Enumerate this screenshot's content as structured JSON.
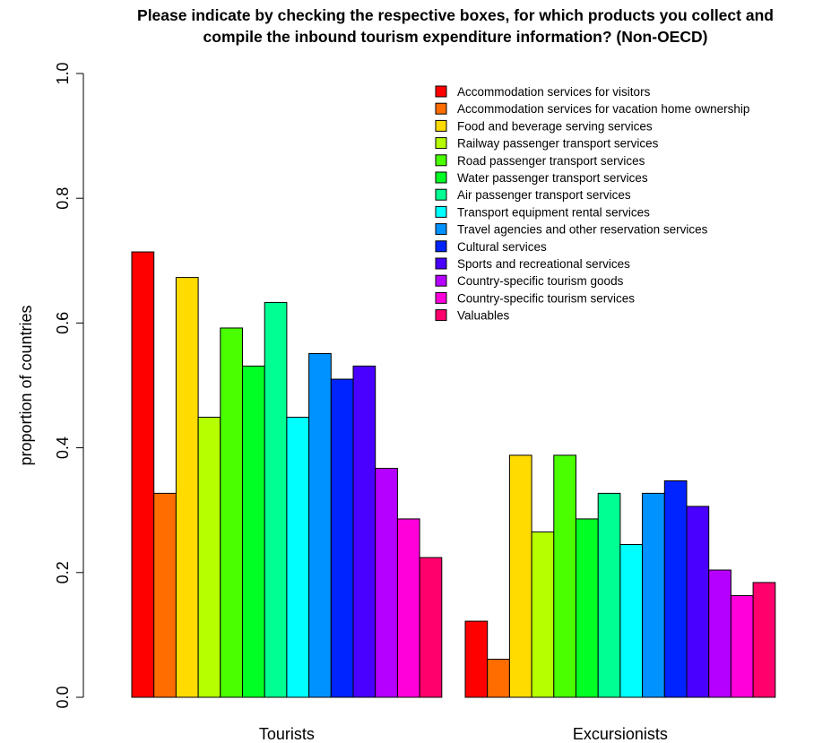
{
  "chart_data": {
    "type": "bar",
    "title": "Please indicate by checking the respective boxes, for which products you collect and compile the inbound tourism expenditure information? (Non-OECD)",
    "title_lines": [
      "Please indicate by checking the respective boxes, for which products you collect and",
      "compile the inbound tourism expenditure information? (Non-OECD)"
    ],
    "xlabel": "",
    "ylabel": "proportion of countries",
    "ylim": [
      0,
      1
    ],
    "yticks": [
      "0.0",
      "0.2",
      "0.4",
      "0.6",
      "0.8",
      "1.0"
    ],
    "categories": [
      "Tourists",
      "Excursionists"
    ],
    "legend_position": "top-right",
    "grid": false,
    "series": [
      {
        "name": "Accommodation services for visitors",
        "color": "#FF0000",
        "values": [
          0.714,
          0.122
        ]
      },
      {
        "name": "Accommodation services for vacation home ownership",
        "color": "#FF6D00",
        "values": [
          0.327,
          0.061
        ]
      },
      {
        "name": "Food and beverage serving services",
        "color": "#FFDB00",
        "values": [
          0.673,
          0.388
        ]
      },
      {
        "name": "Railway passenger transport services",
        "color": "#B6FF00",
        "values": [
          0.449,
          0.265
        ]
      },
      {
        "name": "Road passenger transport services",
        "color": "#49FF00",
        "values": [
          0.592,
          0.388
        ]
      },
      {
        "name": "Water passenger transport services",
        "color": "#00FF24",
        "values": [
          0.531,
          0.286
        ]
      },
      {
        "name": "Air passenger transport services",
        "color": "#00FF92",
        "values": [
          0.633,
          0.327
        ]
      },
      {
        "name": "Transport equipment rental services",
        "color": "#00FFFF",
        "values": [
          0.449,
          0.245
        ]
      },
      {
        "name": "Travel agencies and other reservation services",
        "color": "#0092FF",
        "values": [
          0.551,
          0.327
        ]
      },
      {
        "name": "Cultural services",
        "color": "#0024FF",
        "values": [
          0.51,
          0.347
        ]
      },
      {
        "name": "Sports and recreational services",
        "color": "#4900FF",
        "values": [
          0.531,
          0.306
        ]
      },
      {
        "name": "Country-specific tourism goods",
        "color": "#B600FF",
        "values": [
          0.367,
          0.204
        ]
      },
      {
        "name": "Country-specific tourism services",
        "color": "#FF00DB",
        "values": [
          0.286,
          0.163
        ]
      },
      {
        "name": "Valuables",
        "color": "#FF006D",
        "values": [
          0.224,
          0.184
        ]
      }
    ]
  }
}
